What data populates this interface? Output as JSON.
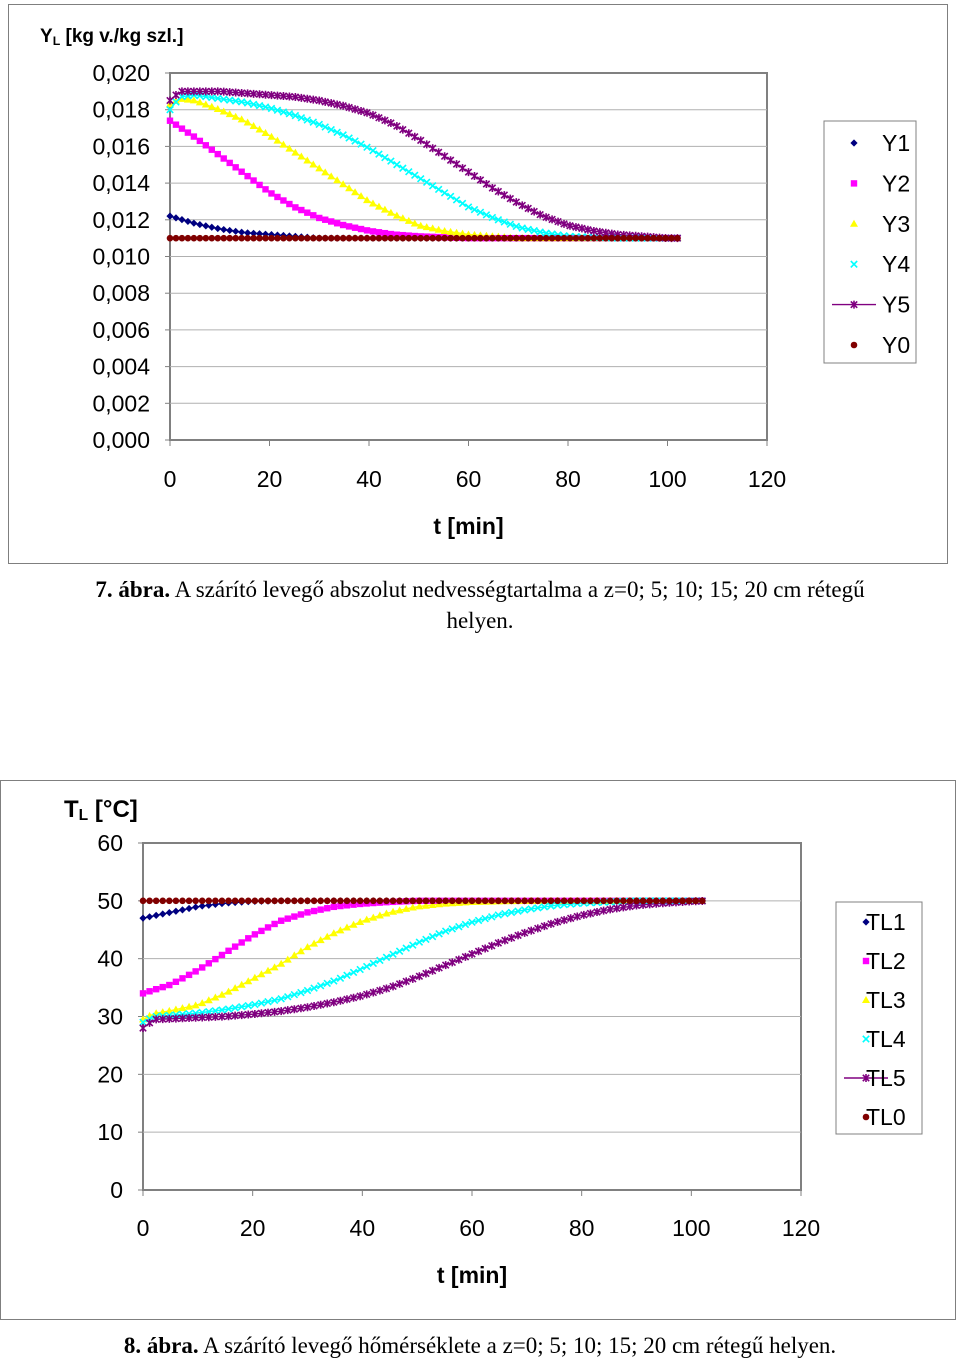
{
  "chart_data": [
    {
      "type": "line",
      "ylabel_main": "Y",
      "ylabel_sub": "L",
      "ylabel_rest": " [kg v./kg szl.]",
      "xlabel": "t [min]",
      "xlim": [
        0,
        120
      ],
      "ylim": [
        0,
        0.02
      ],
      "x_ticks": [
        "0",
        "20",
        "40",
        "60",
        "80",
        "100",
        "120"
      ],
      "y_ticks": [
        "0,000",
        "0,002",
        "0,004",
        "0,006",
        "0,008",
        "0,010",
        "0,012",
        "0,014",
        "0,016",
        "0,018",
        "0,020"
      ],
      "grid": "horizontal",
      "legend_position": "right",
      "series": [
        {
          "name": "Y1",
          "color": "#000080",
          "marker": "diamond",
          "x": [
            0,
            5,
            10,
            15,
            20,
            25,
            30,
            40,
            60,
            80,
            100,
            103
          ],
          "y": [
            0.0122,
            0.0118,
            0.0115,
            0.0113,
            0.0112,
            0.0111,
            0.011,
            0.011,
            0.011,
            0.011,
            0.011,
            0.011
          ]
        },
        {
          "name": "Y2",
          "color": "#ff00ff",
          "marker": "square",
          "x": [
            0,
            5,
            10,
            15,
            20,
            25,
            30,
            35,
            40,
            45,
            50,
            60,
            80,
            100,
            103
          ],
          "y": [
            0.0174,
            0.0165,
            0.0155,
            0.0145,
            0.0135,
            0.0127,
            0.0121,
            0.0117,
            0.0114,
            0.0112,
            0.0111,
            0.011,
            0.011,
            0.011,
            0.011
          ]
        },
        {
          "name": "Y3",
          "color": "#ffff00",
          "marker": "triangle",
          "x": [
            0,
            2,
            5,
            10,
            15,
            20,
            25,
            30,
            35,
            40,
            45,
            50,
            55,
            60,
            70,
            80,
            100,
            103
          ],
          "y": [
            0.0183,
            0.0186,
            0.0185,
            0.018,
            0.0174,
            0.0166,
            0.0157,
            0.0148,
            0.0139,
            0.013,
            0.0123,
            0.0117,
            0.0114,
            0.0112,
            0.011,
            0.011,
            0.011,
            0.011
          ]
        },
        {
          "name": "Y4",
          "color": "#00ffff",
          "marker": "x",
          "x": [
            0,
            2,
            5,
            10,
            15,
            20,
            25,
            30,
            35,
            40,
            45,
            50,
            55,
            60,
            65,
            70,
            75,
            80,
            90,
            100,
            103
          ],
          "y": [
            0.018,
            0.0187,
            0.0188,
            0.0186,
            0.0184,
            0.0181,
            0.0177,
            0.0172,
            0.0166,
            0.0159,
            0.0151,
            0.0143,
            0.0135,
            0.0127,
            0.0121,
            0.0116,
            0.0113,
            0.0111,
            0.011,
            0.011,
            0.011
          ]
        },
        {
          "name": "Y5",
          "color": "#800080",
          "marker": "star",
          "x": [
            0,
            2,
            5,
            10,
            15,
            20,
            25,
            30,
            35,
            40,
            45,
            50,
            55,
            60,
            65,
            70,
            75,
            80,
            85,
            90,
            95,
            100,
            103
          ],
          "y": [
            0.0185,
            0.019,
            0.019,
            0.019,
            0.0189,
            0.0188,
            0.0187,
            0.0185,
            0.0182,
            0.0178,
            0.0172,
            0.0164,
            0.0155,
            0.0146,
            0.0137,
            0.0129,
            0.0122,
            0.0117,
            0.0114,
            0.0112,
            0.0111,
            0.011,
            0.011
          ]
        },
        {
          "name": "Y0",
          "color": "#800000",
          "marker": "circle",
          "x": [
            0,
            20,
            40,
            60,
            80,
            100,
            103
          ],
          "y": [
            0.011,
            0.011,
            0.011,
            0.011,
            0.011,
            0.011,
            0.011
          ]
        }
      ]
    },
    {
      "type": "line",
      "ylabel_main": "T",
      "ylabel_sub": "L",
      "ylabel_rest": " [°C]",
      "xlabel": "t [min]",
      "xlim": [
        0,
        120
      ],
      "ylim": [
        0,
        60
      ],
      "x_ticks": [
        "0",
        "20",
        "40",
        "60",
        "80",
        "100",
        "120"
      ],
      "y_ticks": [
        "0",
        "10",
        "20",
        "30",
        "40",
        "50",
        "60"
      ],
      "grid": "horizontal",
      "legend_position": "right",
      "series": [
        {
          "name": "TL1",
          "color": "#000080",
          "marker": "diamond",
          "x": [
            0,
            5,
            10,
            15,
            20,
            25,
            30,
            40,
            60,
            80,
            100,
            103
          ],
          "y": [
            47.0,
            48.0,
            49.0,
            49.6,
            49.9,
            50.0,
            50.0,
            50.0,
            50.0,
            50.0,
            50.0,
            50.0
          ]
        },
        {
          "name": "TL2",
          "color": "#ff00ff",
          "marker": "square",
          "x": [
            0,
            5,
            10,
            15,
            20,
            25,
            30,
            35,
            40,
            45,
            50,
            60,
            80,
            100,
            103
          ],
          "y": [
            34.0,
            35.5,
            38.0,
            41.0,
            44.0,
            46.5,
            48.0,
            49.0,
            49.5,
            49.8,
            50.0,
            50.0,
            50.0,
            50.0,
            50.0
          ]
        },
        {
          "name": "TL3",
          "color": "#ffff00",
          "marker": "triangle",
          "x": [
            0,
            2,
            5,
            10,
            15,
            20,
            25,
            30,
            35,
            40,
            45,
            50,
            55,
            60,
            70,
            80,
            100,
            103
          ],
          "y": [
            29.5,
            30.5,
            31.0,
            32.0,
            34.0,
            36.5,
            39.0,
            42.0,
            44.5,
            46.5,
            48.0,
            49.0,
            49.5,
            49.8,
            50.0,
            50.0,
            50.0,
            50.0
          ]
        },
        {
          "name": "TL4",
          "color": "#00ffff",
          "marker": "x",
          "x": [
            0,
            2,
            5,
            10,
            15,
            20,
            25,
            30,
            35,
            40,
            45,
            50,
            55,
            60,
            65,
            70,
            75,
            80,
            90,
            100,
            103
          ],
          "y": [
            29.0,
            30.0,
            30.2,
            30.6,
            31.2,
            32.0,
            33.0,
            34.5,
            36.2,
            38.3,
            40.5,
            42.7,
            44.7,
            46.3,
            47.6,
            48.5,
            49.2,
            49.6,
            50.0,
            50.0,
            50.0
          ]
        },
        {
          "name": "TL5",
          "color": "#800080",
          "marker": "star",
          "x": [
            0,
            2,
            5,
            10,
            15,
            20,
            25,
            30,
            35,
            40,
            45,
            50,
            55,
            60,
            65,
            70,
            75,
            80,
            85,
            90,
            95,
            100,
            103
          ],
          "y": [
            28.0,
            29.5,
            29.6,
            29.8,
            30.0,
            30.4,
            30.9,
            31.6,
            32.5,
            33.6,
            35.0,
            36.8,
            38.8,
            40.8,
            42.8,
            44.6,
            46.2,
            47.5,
            48.5,
            49.2,
            49.6,
            49.9,
            50.0
          ]
        },
        {
          "name": "TL0",
          "color": "#800000",
          "marker": "circle",
          "x": [
            0,
            20,
            40,
            60,
            80,
            100,
            103
          ],
          "y": [
            50.0,
            50.0,
            50.0,
            50.0,
            50.0,
            50.0,
            50.0
          ]
        }
      ]
    }
  ],
  "captions": [
    {
      "label": "7. ábra.",
      "text": " A szárító levegő abszolut nedvességtartalma a z=0; 5; 10; 15; 20 cm rétegű",
      "text2": "helyen."
    },
    {
      "label": "8. ábra.",
      "text": " A szárító levegő hőmérséklete a z=0; 5; 10; 15; 20 cm rétegű helyen.",
      "text2": ""
    }
  ]
}
